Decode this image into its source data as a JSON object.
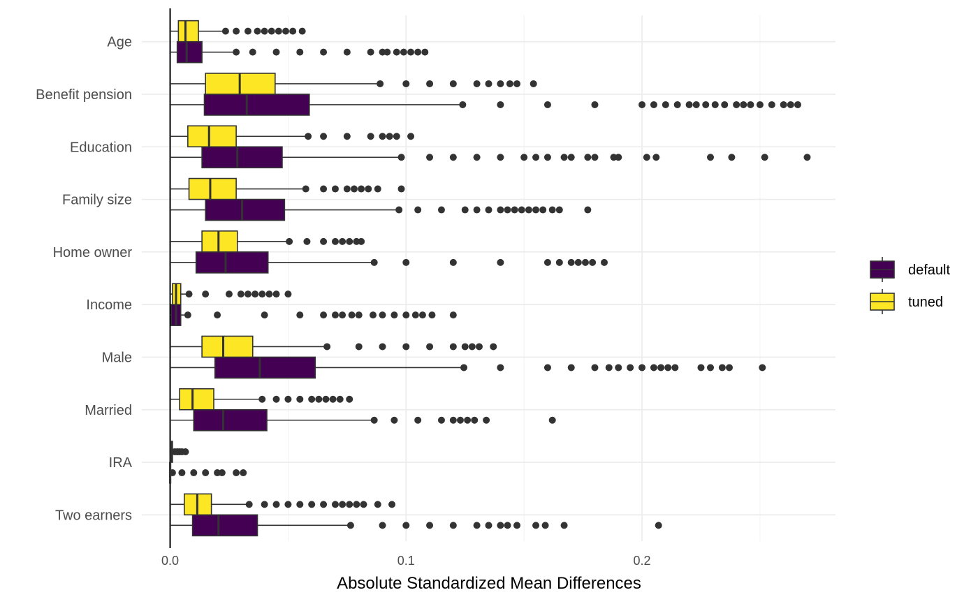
{
  "chart_data": {
    "type": "boxplot",
    "orientation": "horizontal",
    "xlabel": "Absolute Standardized Mean Differences",
    "ylabel": "",
    "xlim": [
      -0.012,
      0.282
    ],
    "x_ticks": [
      0.0,
      0.1,
      0.2
    ],
    "x_tick_labels": [
      "0.0",
      "0.1",
      "0.2"
    ],
    "grid": true,
    "legend_position": "right",
    "vertical_reference_line": 0.0,
    "categories": [
      "Age",
      "Benefit pension",
      "Education",
      "Family size",
      "Home owner",
      "Income",
      "Male",
      "Married",
      "IRA",
      "Two earners"
    ],
    "series": [
      {
        "name": "default",
        "color": "#440154",
        "boxes": [
          {
            "category": "Age",
            "whisker_low": 0.0,
            "q1": 0.003,
            "median": 0.007,
            "q3": 0.0135,
            "whisker_high": 0.028,
            "outliers": [
              0.028,
              0.035,
              0.045,
              0.055,
              0.065,
              0.075,
              0.085,
              0.09,
              0.092,
              0.096,
              0.099,
              0.102,
              0.105,
              0.108
            ]
          },
          {
            "category": "Benefit pension",
            "whisker_low": 0.0,
            "q1": 0.0145,
            "median": 0.0325,
            "q3": 0.059,
            "whisker_high": 0.124,
            "outliers": [
              0.124,
              0.14,
              0.16,
              0.18,
              0.2,
              0.205,
              0.21,
              0.215,
              0.22,
              0.223,
              0.227,
              0.231,
              0.235,
              0.24,
              0.243,
              0.246,
              0.25,
              0.255,
              0.26,
              0.263,
              0.266
            ]
          },
          {
            "category": "Education",
            "whisker_low": 0.0,
            "q1": 0.0135,
            "median": 0.0285,
            "q3": 0.0475,
            "whisker_high": 0.098,
            "outliers": [
              0.098,
              0.11,
              0.12,
              0.13,
              0.14,
              0.15,
              0.155,
              0.16,
              0.167,
              0.17,
              0.177,
              0.18,
              0.188,
              0.19,
              0.202,
              0.206,
              0.229,
              0.238,
              0.252,
              0.27
            ]
          },
          {
            "category": "Family size",
            "whisker_low": 0.0,
            "q1": 0.015,
            "median": 0.0305,
            "q3": 0.0485,
            "whisker_high": 0.097,
            "outliers": [
              0.097,
              0.105,
              0.115,
              0.125,
              0.13,
              0.135,
              0.14,
              0.143,
              0.146,
              0.149,
              0.152,
              0.155,
              0.158,
              0.162,
              0.165,
              0.177
            ]
          },
          {
            "category": "Home owner",
            "whisker_low": 0.0,
            "q1": 0.011,
            "median": 0.0235,
            "q3": 0.0415,
            "whisker_high": 0.0865,
            "outliers": [
              0.0865,
              0.1,
              0.12,
              0.14,
              0.16,
              0.165,
              0.17,
              0.173,
              0.176,
              0.179,
              0.184
            ]
          },
          {
            "category": "Income",
            "whisker_low": 0.0,
            "q1": 0.0005,
            "median": 0.0025,
            "q3": 0.0045,
            "whisker_high": 0.0075,
            "outliers": [
              0.0075,
              0.02,
              0.04,
              0.055,
              0.065,
              0.07,
              0.073,
              0.077,
              0.08,
              0.086,
              0.09,
              0.095,
              0.1,
              0.104,
              0.107,
              0.111,
              0.12
            ]
          },
          {
            "category": "Male",
            "whisker_low": 0.0,
            "q1": 0.019,
            "median": 0.038,
            "q3": 0.0615,
            "whisker_high": 0.1245,
            "outliers": [
              0.1245,
              0.14,
              0.16,
              0.17,
              0.18,
              0.186,
              0.19,
              0.195,
              0.2,
              0.205,
              0.208,
              0.211,
              0.214,
              0.225,
              0.229,
              0.234,
              0.237,
              0.251
            ]
          },
          {
            "category": "Married",
            "whisker_low": 0.0,
            "q1": 0.01,
            "median": 0.0225,
            "q3": 0.041,
            "whisker_high": 0.0865,
            "outliers": [
              0.0865,
              0.095,
              0.105,
              0.115,
              0.12,
              0.123,
              0.126,
              0.129,
              0.134,
              0.162
            ]
          },
          {
            "category": "IRA",
            "whisker_low": -0.0005,
            "q1": -0.0002,
            "median": 0.0,
            "q3": 0.0002,
            "whisker_high": 0.0005,
            "outliers": [
              0.001,
              0.005,
              0.01,
              0.015,
              0.02,
              0.022,
              0.028,
              0.031
            ]
          },
          {
            "category": "Two earners",
            "whisker_low": 0.0,
            "q1": 0.0095,
            "median": 0.0205,
            "q3": 0.037,
            "whisker_high": 0.0765,
            "outliers": [
              0.0765,
              0.09,
              0.1,
              0.11,
              0.12,
              0.13,
              0.135,
              0.14,
              0.143,
              0.147,
              0.155,
              0.159,
              0.167,
              0.207
            ]
          }
        ]
      },
      {
        "name": "tuned",
        "color": "#FDE725",
        "boxes": [
          {
            "category": "Age",
            "whisker_low": 0.0,
            "q1": 0.0035,
            "median": 0.0065,
            "q3": 0.012,
            "whisker_high": 0.0235,
            "outliers": [
              0.0235,
              0.028,
              0.033,
              0.037,
              0.04,
              0.043,
              0.046,
              0.049,
              0.052,
              0.056
            ]
          },
          {
            "category": "Benefit pension",
            "whisker_low": 0.0,
            "q1": 0.015,
            "median": 0.0295,
            "q3": 0.0445,
            "whisker_high": 0.089,
            "outliers": [
              0.089,
              0.1,
              0.11,
              0.12,
              0.13,
              0.135,
              0.14,
              0.144,
              0.147,
              0.154
            ]
          },
          {
            "category": "Education",
            "whisker_low": 0.0,
            "q1": 0.0075,
            "median": 0.0165,
            "q3": 0.028,
            "whisker_high": 0.0585,
            "outliers": [
              0.0585,
              0.065,
              0.075,
              0.085,
              0.09,
              0.093,
              0.096,
              0.102
            ]
          },
          {
            "category": "Family size",
            "whisker_low": 0.0,
            "q1": 0.008,
            "median": 0.017,
            "q3": 0.028,
            "whisker_high": 0.0575,
            "outliers": [
              0.0575,
              0.065,
              0.07,
              0.075,
              0.078,
              0.081,
              0.084,
              0.088,
              0.098
            ]
          },
          {
            "category": "Home owner",
            "whisker_low": 0.0,
            "q1": 0.0135,
            "median": 0.0205,
            "q3": 0.0285,
            "whisker_high": 0.0505,
            "outliers": [
              0.0505,
              0.058,
              0.065,
              0.07,
              0.073,
              0.076,
              0.079,
              0.081
            ]
          },
          {
            "category": "Income",
            "whisker_low": 0.0,
            "q1": 0.001,
            "median": 0.0025,
            "q3": 0.0045,
            "whisker_high": 0.008,
            "outliers": [
              0.008,
              0.015,
              0.025,
              0.03,
              0.033,
              0.036,
              0.039,
              0.042,
              0.045,
              0.05
            ]
          },
          {
            "category": "Male",
            "whisker_low": 0.0,
            "q1": 0.0135,
            "median": 0.0225,
            "q3": 0.035,
            "whisker_high": 0.0665,
            "outliers": [
              0.0665,
              0.08,
              0.09,
              0.1,
              0.11,
              0.12,
              0.125,
              0.128,
              0.131,
              0.137
            ]
          },
          {
            "category": "Married",
            "whisker_low": 0.0,
            "q1": 0.004,
            "median": 0.0095,
            "q3": 0.0185,
            "whisker_high": 0.039,
            "outliers": [
              0.039,
              0.045,
              0.05,
              0.055,
              0.06,
              0.063,
              0.066,
              0.069,
              0.072,
              0.076
            ]
          },
          {
            "category": "IRA",
            "whisker_low": 0.0,
            "q1": 0.0002,
            "median": 0.0005,
            "q3": 0.001,
            "whisker_high": 0.0015,
            "outliers": [
              0.002,
              0.003,
              0.004,
              0.005,
              0.0065
            ]
          },
          {
            "category": "Two earners",
            "whisker_low": 0.0,
            "q1": 0.006,
            "median": 0.0115,
            "q3": 0.0175,
            "whisker_high": 0.0335,
            "outliers": [
              0.0335,
              0.04,
              0.045,
              0.05,
              0.055,
              0.06,
              0.065,
              0.07,
              0.073,
              0.076,
              0.079,
              0.082,
              0.088,
              0.094
            ]
          }
        ]
      }
    ],
    "legend": [
      {
        "name": "default",
        "color": "#440154"
      },
      {
        "name": "tuned",
        "color": "#FDE725"
      }
    ]
  }
}
